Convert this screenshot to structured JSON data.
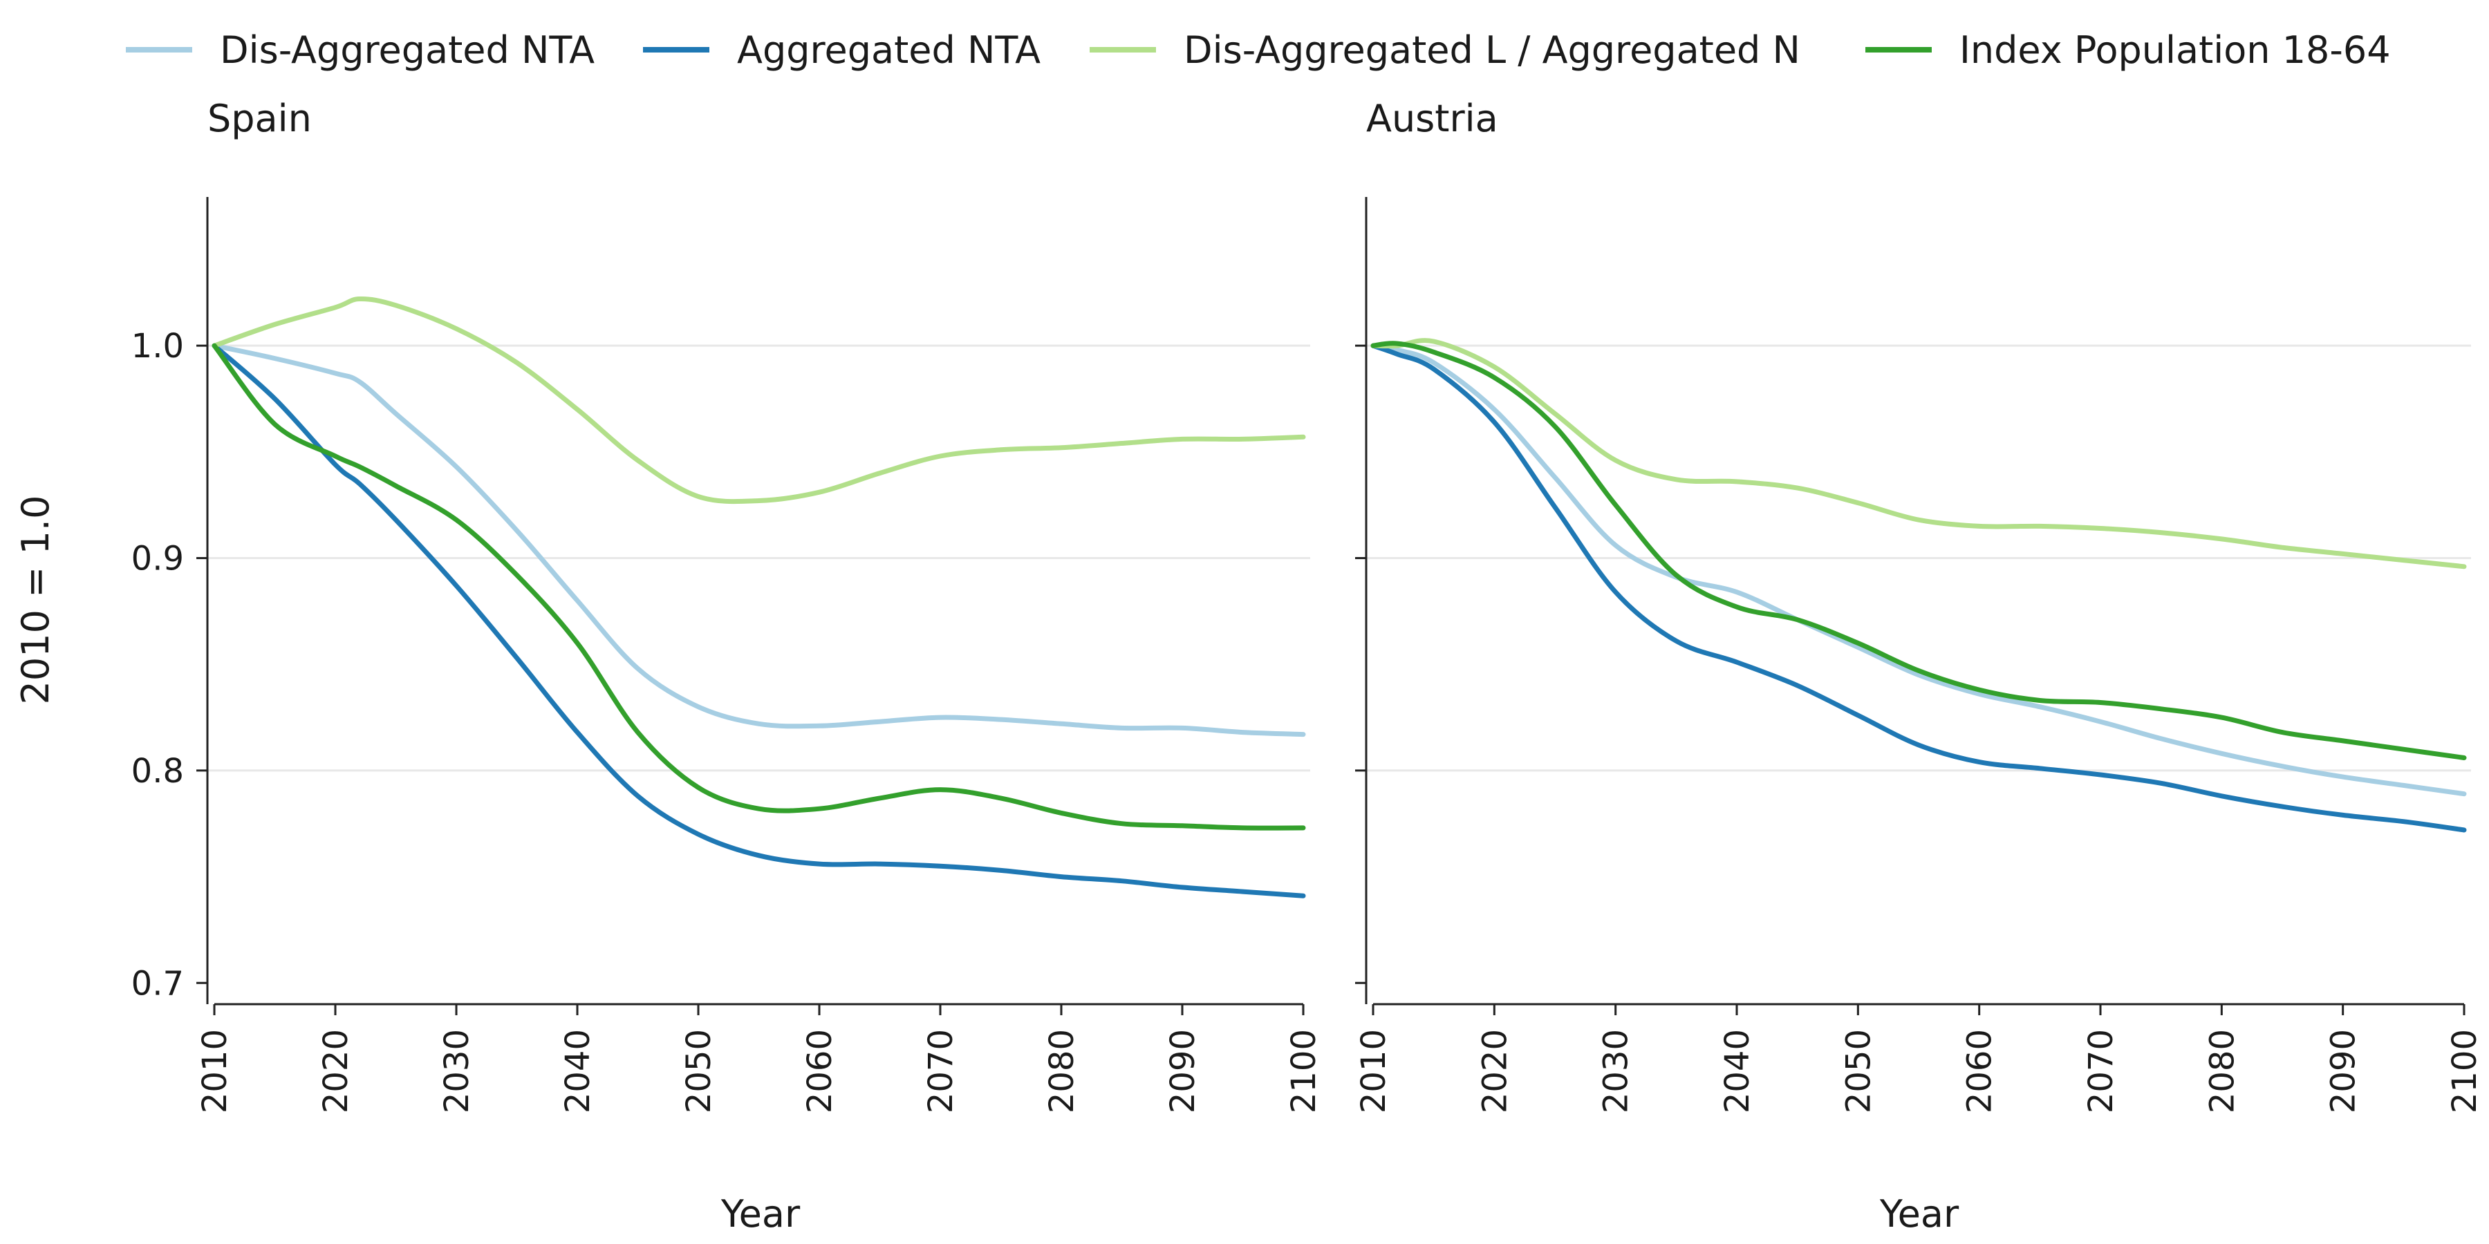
{
  "chart_data": {
    "type": "line",
    "ylabel": "2010 = 1.0",
    "ylim": [
      0.69,
      1.07
    ],
    "yticks": [
      0.7,
      0.8,
      0.9,
      1.0
    ],
    "ytick_labels": [
      "0.7",
      "0.8",
      "0.9",
      "1.0"
    ],
    "xlim": [
      2010,
      2100
    ],
    "xticks": [
      2010,
      2020,
      2030,
      2040,
      2050,
      2060,
      2070,
      2080,
      2090,
      2100
    ],
    "grid": "horizontal",
    "legend_position": "top",
    "legend": [
      {
        "name": "Dis-Aggregated NTA",
        "color": "#a6cee3"
      },
      {
        "name": "Aggregated NTA",
        "color": "#1f78b4"
      },
      {
        "name": "Dis-Aggregated L / Aggregated N",
        "color": "#b2df8a"
      },
      {
        "name": "Index Population 18-64",
        "color": "#33a02c"
      }
    ],
    "panels": [
      {
        "title": "Spain",
        "xlabel": "Year",
        "x": [
          2010,
          2015,
          2020,
          2022,
          2025,
          2030,
          2035,
          2040,
          2045,
          2050,
          2055,
          2060,
          2065,
          2070,
          2075,
          2080,
          2085,
          2090,
          2095,
          2100
        ],
        "series": [
          {
            "name": "Dis-Aggregated NTA",
            "values": [
              1.0,
              0.994,
              0.987,
              0.983,
              0.968,
              0.943,
              0.913,
              0.88,
              0.848,
              0.83,
              0.822,
              0.821,
              0.823,
              0.825,
              0.824,
              0.822,
              0.82,
              0.82,
              0.818,
              0.817
            ]
          },
          {
            "name": "Aggregated NTA",
            "values": [
              1.0,
              0.975,
              0.944,
              0.935,
              0.918,
              0.887,
              0.853,
              0.818,
              0.788,
              0.77,
              0.76,
              0.756,
              0.756,
              0.755,
              0.753,
              0.75,
              0.748,
              0.745,
              0.743,
              0.741
            ]
          },
          {
            "name": "Dis-Aggregated L / Aggregated N",
            "values": [
              1.0,
              1.01,
              1.018,
              1.022,
              1.019,
              1.008,
              0.992,
              0.97,
              0.946,
              0.929,
              0.927,
              0.931,
              0.94,
              0.948,
              0.951,
              0.952,
              0.954,
              0.956,
              0.956,
              0.957
            ]
          },
          {
            "name": "Index Population 18-64",
            "values": [
              1.0,
              0.963,
              0.948,
              0.943,
              0.934,
              0.918,
              0.892,
              0.86,
              0.818,
              0.792,
              0.782,
              0.782,
              0.787,
              0.791,
              0.787,
              0.78,
              0.775,
              0.774,
              0.773,
              0.773
            ]
          }
        ]
      },
      {
        "title": "Austria",
        "xlabel": "Year",
        "x": [
          2010,
          2012,
          2015,
          2020,
          2025,
          2030,
          2035,
          2040,
          2045,
          2050,
          2055,
          2060,
          2065,
          2070,
          2075,
          2080,
          2085,
          2090,
          2095,
          2100
        ],
        "series": [
          {
            "name": "Dis-Aggregated NTA",
            "values": [
              1.0,
              0.998,
              0.992,
              0.97,
              0.938,
              0.906,
              0.891,
              0.884,
              0.871,
              0.858,
              0.845,
              0.836,
              0.83,
              0.823,
              0.815,
              0.808,
              0.802,
              0.797,
              0.793,
              0.789
            ]
          },
          {
            "name": "Aggregated NTA",
            "values": [
              1.0,
              0.996,
              0.989,
              0.964,
              0.924,
              0.884,
              0.861,
              0.851,
              0.84,
              0.826,
              0.812,
              0.804,
              0.801,
              0.798,
              0.794,
              0.788,
              0.783,
              0.779,
              0.776,
              0.772
            ]
          },
          {
            "name": "Dis-Aggregated L / Aggregated N",
            "values": [
              1.0,
              1.0,
              1.002,
              0.99,
              0.968,
              0.946,
              0.937,
              0.936,
              0.933,
              0.926,
              0.918,
              0.915,
              0.915,
              0.914,
              0.912,
              0.909,
              0.905,
              0.902,
              0.899,
              0.896
            ]
          },
          {
            "name": "Index Population 18-64",
            "values": [
              1.0,
              1.001,
              0.997,
              0.985,
              0.962,
              0.925,
              0.892,
              0.877,
              0.871,
              0.86,
              0.847,
              0.838,
              0.833,
              0.832,
              0.829,
              0.825,
              0.818,
              0.814,
              0.81,
              0.806
            ]
          }
        ]
      }
    ]
  }
}
